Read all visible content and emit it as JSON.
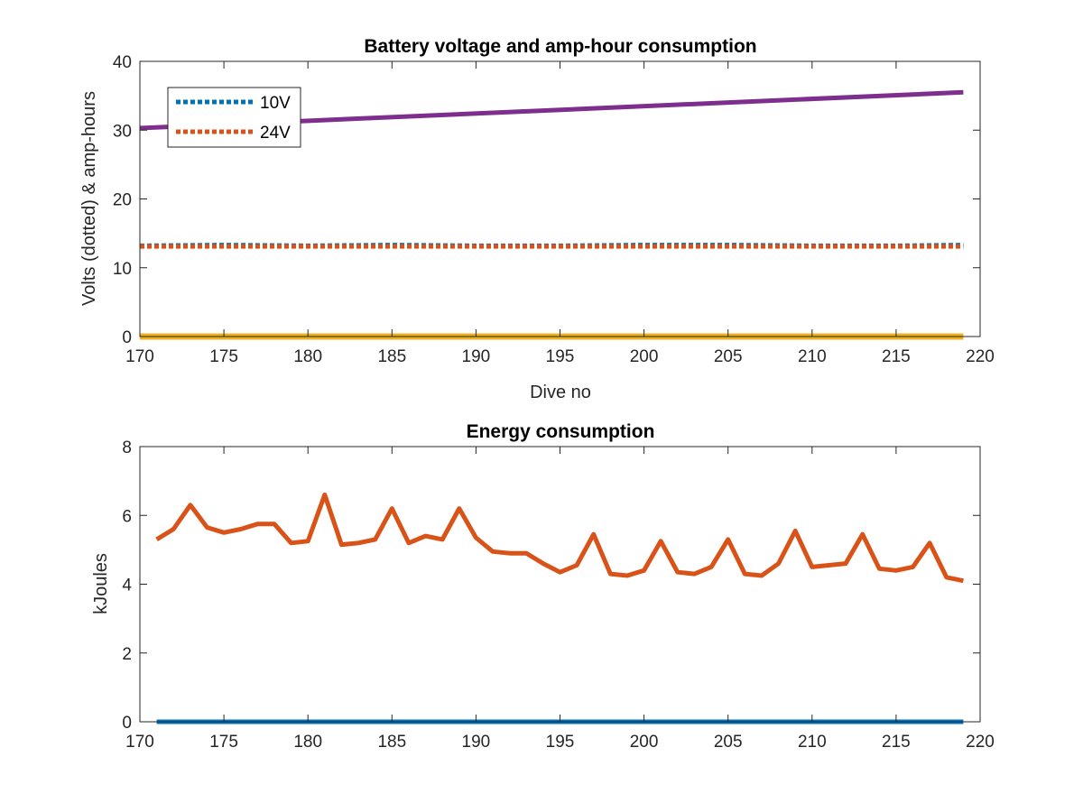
{
  "chart_data": [
    {
      "type": "line",
      "title": "Battery voltage and amp-hour consumption",
      "xlabel": "Dive no",
      "ylabel": "Volts (dotted) & amp-hours",
      "xlim": [
        170,
        220
      ],
      "ylim": [
        0,
        40
      ],
      "xticks": [
        170,
        175,
        180,
        185,
        190,
        195,
        200,
        205,
        210,
        215,
        220
      ],
      "yticks": [
        0,
        10,
        20,
        30,
        40
      ],
      "grid": false,
      "legend": {
        "placement": "top-left",
        "entries": [
          "10V",
          "24V"
        ]
      },
      "series": [
        {
          "name": "10V",
          "style": "dotted",
          "color": "#0072BD",
          "x": [
            170,
            175,
            180,
            185,
            190,
            195,
            200,
            205,
            210,
            215,
            219
          ],
          "y": [
            13.2,
            13.3,
            13.2,
            13.3,
            13.2,
            13.2,
            13.3,
            13.3,
            13.2,
            13.2,
            13.3
          ]
        },
        {
          "name": "24V",
          "style": "dotted",
          "color": "#D95319",
          "x": [
            170,
            175,
            180,
            185,
            190,
            195,
            200,
            205,
            210,
            215,
            219
          ],
          "y": [
            13.1,
            13.1,
            13.1,
            13.1,
            13.1,
            13.1,
            13.1,
            13.1,
            13.1,
            13.1,
            13.1
          ]
        },
        {
          "style": "solid",
          "color": "#EDB120",
          "x": [
            170,
            219
          ],
          "y": [
            0,
            0
          ]
        },
        {
          "style": "solid",
          "color": "#7E2F8E",
          "x": [
            170,
            219
          ],
          "y": [
            30.3,
            35.5
          ]
        }
      ]
    },
    {
      "type": "line",
      "title": "Energy consumption",
      "xlabel": "",
      "ylabel": "kJoules",
      "xlim": [
        170,
        220
      ],
      "ylim": [
        0,
        8
      ],
      "xticks": [
        170,
        175,
        180,
        185,
        190,
        195,
        200,
        205,
        210,
        215,
        220
      ],
      "yticks": [
        0,
        2,
        4,
        6,
        8
      ],
      "grid": false,
      "series": [
        {
          "style": "solid",
          "color": "#0072BD",
          "x": [
            171,
            219
          ],
          "y": [
            0,
            0
          ]
        },
        {
          "style": "solid",
          "color": "#D95319",
          "x": [
            171,
            172,
            173,
            174,
            175,
            176,
            177,
            178,
            179,
            180,
            181,
            182,
            183,
            184,
            185,
            186,
            187,
            188,
            189,
            190,
            191,
            192,
            193,
            194,
            195,
            196,
            197,
            198,
            199,
            200,
            201,
            202,
            203,
            204,
            205,
            206,
            207,
            208,
            209,
            210,
            211,
            212,
            213,
            214,
            215,
            216,
            217,
            218,
            219
          ],
          "y": [
            5.3,
            5.6,
            6.3,
            5.65,
            5.5,
            5.6,
            5.75,
            5.75,
            5.2,
            5.25,
            6.6,
            5.15,
            5.2,
            5.3,
            6.2,
            5.2,
            5.4,
            5.3,
            6.2,
            5.35,
            4.95,
            4.9,
            4.9,
            4.6,
            4.35,
            4.55,
            5.45,
            4.3,
            4.25,
            4.4,
            5.25,
            4.35,
            4.3,
            4.5,
            5.3,
            4.3,
            4.25,
            4.6,
            5.55,
            4.5,
            4.55,
            4.6,
            5.45,
            4.45,
            4.4,
            4.5,
            5.2,
            4.2,
            4.1
          ]
        }
      ]
    }
  ]
}
